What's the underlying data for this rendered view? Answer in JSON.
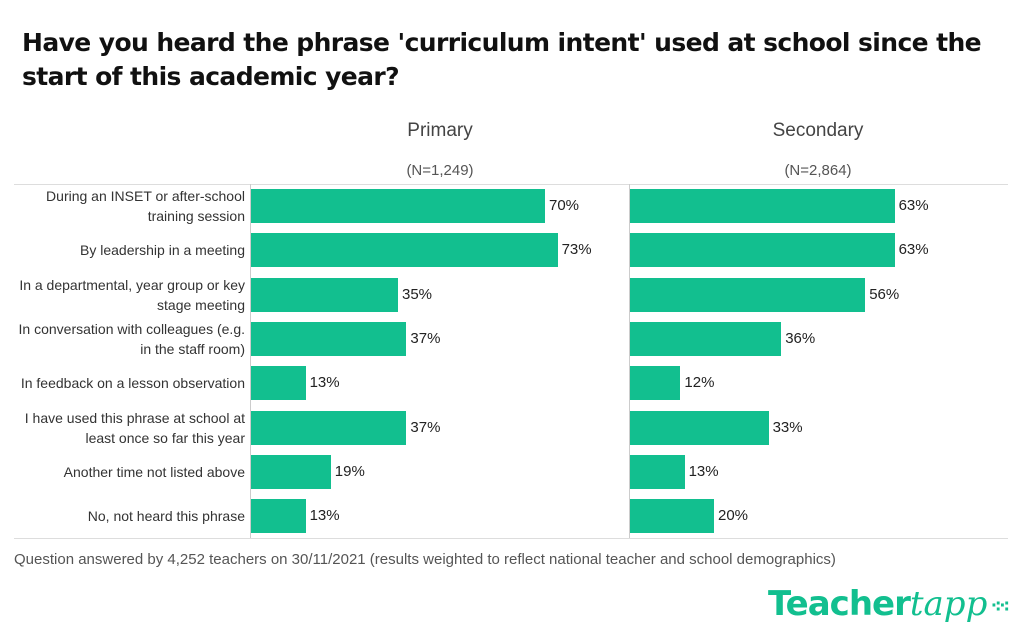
{
  "title": "Have you heard the phrase 'curriculum intent' used at school since the start of this academic year?",
  "footnote": "Question answered by 4,252 teachers on 30/11/2021 (results weighted to reflect national teacher and school demographics)",
  "logo": {
    "text_main": "Teacher",
    "text_accent": "tapp"
  },
  "colors": {
    "bar": "#12bf8f"
  },
  "chart_data": {
    "type": "bar",
    "orientation": "horizontal",
    "title": "Have you heard the phrase 'curriculum intent' used at school since the start of this academic year?",
    "categories": [
      "During an INSET or after-school training session",
      "By leadership in a meeting",
      "In a departmental, year group or key stage meeting",
      "In conversation with colleagues (e.g. in the staff room)",
      "In feedback on a lesson observation",
      "I have used this phrase at school at least once so far this year",
      "Another time not listed above",
      "No, not heard this phrase"
    ],
    "panels": [
      {
        "name": "Primary",
        "n": "(N=1,249)",
        "values": [
          70,
          73,
          35,
          37,
          13,
          37,
          19,
          13
        ],
        "labels": [
          "70%",
          "73%",
          "35%",
          "37%",
          "13%",
          "37%",
          "19%",
          "13%"
        ]
      },
      {
        "name": "Secondary",
        "n": "(N=2,864)",
        "values": [
          63,
          63,
          56,
          36,
          12,
          33,
          13,
          20
        ],
        "labels": [
          "63%",
          "63%",
          "56%",
          "36%",
          "12%",
          "33%",
          "13%",
          "20%"
        ]
      }
    ],
    "xlim": [
      0,
      100
    ],
    "unit": "%"
  }
}
